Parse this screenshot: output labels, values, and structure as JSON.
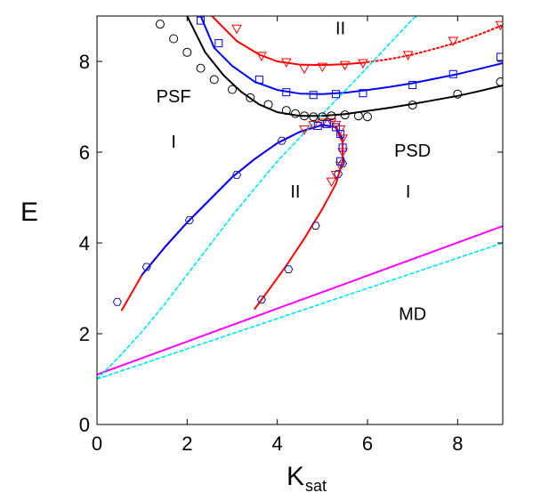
{
  "chart_data": {
    "type": "line",
    "title": "",
    "xlabel_main": "K",
    "xlabel_sub": "sat",
    "ylabel": "E",
    "xlim": [
      0,
      9
    ],
    "ylim": [
      0,
      9
    ],
    "x_ticks": [
      0,
      2,
      4,
      6,
      8
    ],
    "y_ticks": [
      0,
      2,
      4,
      6,
      8
    ],
    "grid": false,
    "legend": "none",
    "region_labels": [
      {
        "text": "II",
        "x": 5.4,
        "y": 8.6
      },
      {
        "text": "PSF",
        "x": 1.7,
        "y": 7.1
      },
      {
        "text": "I",
        "x": 1.7,
        "y": 6.1
      },
      {
        "text": "PSD",
        "x": 7.0,
        "y": 5.9
      },
      {
        "text": "II",
        "x": 4.4,
        "y": 5.0
      },
      {
        "text": "I",
        "x": 6.9,
        "y": 5.0
      },
      {
        "text": "MD",
        "x": 7.0,
        "y": 2.3
      }
    ],
    "series": [
      {
        "color": "#ff0000",
        "style": "solid",
        "x": [
          2.55,
          3.1,
          3.6,
          4.0,
          4.5,
          5.0,
          5.5,
          5.9
        ],
        "y": [
          9.0,
          8.45,
          8.15,
          8.0,
          7.93,
          7.92,
          7.94,
          7.97
        ]
      },
      {
        "color": "#ff0000",
        "style": "dotted",
        "x": [
          5.9,
          6.5,
          7.0,
          7.5,
          8.0,
          8.5,
          9.0
        ],
        "y": [
          7.97,
          8.05,
          8.15,
          8.28,
          8.42,
          8.6,
          8.8
        ]
      },
      {
        "color": "#0000ff",
        "style": "solid",
        "x": [
          2.3,
          2.6,
          3.0,
          3.5,
          4.0,
          4.5,
          5.0,
          5.5,
          6.0,
          6.5,
          7.0,
          7.5,
          8.0,
          8.5,
          9.0
        ],
        "y": [
          9.0,
          8.3,
          7.9,
          7.55,
          7.37,
          7.29,
          7.28,
          7.31,
          7.37,
          7.44,
          7.52,
          7.62,
          7.72,
          7.84,
          7.96
        ]
      },
      {
        "color": "#000000",
        "style": "solid",
        "x": [
          2.0,
          2.4,
          2.8,
          3.2,
          3.6,
          4.0,
          4.5,
          5.0,
          5.5,
          6.0,
          6.5,
          7.0,
          7.5,
          8.0,
          8.5,
          9.0
        ],
        "y": [
          9.0,
          8.2,
          7.7,
          7.33,
          7.05,
          6.88,
          6.8,
          6.8,
          6.84,
          6.91,
          6.98,
          7.06,
          7.15,
          7.24,
          7.35,
          7.47
        ]
      },
      {
        "color": "#ff0000",
        "style": "solid",
        "x": [
          0.55,
          1.0,
          1.5,
          2.0,
          2.5,
          3.0,
          3.5,
          4.0,
          4.5,
          5.0,
          5.3,
          5.45,
          5.45,
          5.3,
          5.0,
          4.6,
          4.2,
          3.8,
          3.5
        ],
        "y": [
          2.52,
          3.3,
          3.9,
          4.45,
          4.95,
          5.45,
          5.85,
          6.2,
          6.45,
          6.6,
          6.55,
          6.3,
          5.8,
          5.3,
          4.75,
          4.1,
          3.5,
          2.95,
          2.55
        ]
      },
      {
        "color": "#0000ff",
        "style": "solid",
        "x": [
          1.0,
          1.5,
          2.0,
          2.5,
          3.0,
          3.5,
          4.0,
          4.5,
          5.0,
          5.3,
          5.42
        ],
        "y": [
          3.3,
          3.9,
          4.45,
          4.95,
          5.45,
          5.85,
          6.2,
          6.45,
          6.6,
          6.55,
          6.3
        ]
      },
      {
        "color": "#ff00ff",
        "style": "solid",
        "x": [
          0,
          9
        ],
        "y": [
          1.1,
          4.37
        ]
      },
      {
        "color": "#00e5ee",
        "style": "dashed",
        "x": [
          0,
          0.5,
          1.0,
          1.5,
          2.0,
          2.5,
          3.0,
          3.5,
          4.0,
          4.5,
          5.0,
          5.5,
          6.0,
          6.5,
          7.0,
          7.1
        ],
        "y": [
          1.0,
          1.5,
          2.05,
          2.65,
          3.3,
          3.95,
          4.6,
          5.2,
          5.8,
          6.32,
          6.84,
          7.35,
          7.87,
          8.4,
          8.93,
          9.0
        ]
      },
      {
        "color": "#00e5ee",
        "style": "dashed",
        "x": [
          0,
          9
        ],
        "y": [
          1.0,
          4.0
        ]
      }
    ],
    "markers": [
      {
        "symbol": "triangle-down",
        "color": "#ff0000",
        "x": [
          3.1,
          3.65,
          4.2,
          4.6,
          5.0,
          5.5,
          5.9,
          6.9,
          7.9,
          8.95,
          4.6,
          4.8,
          5.0,
          5.2,
          5.3,
          5.4,
          5.45,
          5.45,
          5.4,
          5.3,
          5.2
        ],
        "y": [
          8.72,
          8.12,
          7.98,
          7.84,
          7.88,
          7.92,
          7.96,
          8.14,
          8.45,
          8.8,
          6.5,
          6.6,
          6.65,
          6.66,
          6.6,
          6.5,
          6.3,
          6.0,
          5.7,
          5.5,
          5.35
        ]
      },
      {
        "symbol": "square",
        "color": "#0000ff",
        "x": [
          2.3,
          2.7,
          3.6,
          4.2,
          4.8,
          5.3,
          5.9,
          7.0,
          7.9,
          8.95,
          4.9,
          5.1,
          5.3,
          5.4,
          5.45,
          5.4
        ],
        "y": [
          8.9,
          8.4,
          7.6,
          7.32,
          7.26,
          7.28,
          7.3,
          7.48,
          7.72,
          8.1,
          6.58,
          6.62,
          6.55,
          6.4,
          6.1,
          5.8
        ]
      },
      {
        "symbol": "circle",
        "color": "#000000",
        "x": [
          1.4,
          1.7,
          2.0,
          2.3,
          2.6,
          3.0,
          3.4,
          3.8,
          4.2,
          4.4,
          4.6,
          4.8,
          5.0,
          5.2,
          5.5,
          5.8,
          6.0,
          7.0,
          8.0,
          8.95
        ],
        "y": [
          8.82,
          8.5,
          8.2,
          7.85,
          7.6,
          7.38,
          7.2,
          7.05,
          6.92,
          6.85,
          6.8,
          6.78,
          6.78,
          6.8,
          6.82,
          6.8,
          6.78,
          7.04,
          7.28,
          7.55
        ]
      },
      {
        "symbol": "hexagon",
        "color": "#1a1aa0",
        "x": [
          0.45,
          1.1,
          2.05,
          3.1,
          4.1,
          3.65,
          4.25,
          4.85,
          5.35,
          5.45
        ],
        "y": [
          2.7,
          3.47,
          4.5,
          5.5,
          6.25,
          2.75,
          3.42,
          4.38,
          5.52,
          5.75
        ]
      }
    ]
  }
}
